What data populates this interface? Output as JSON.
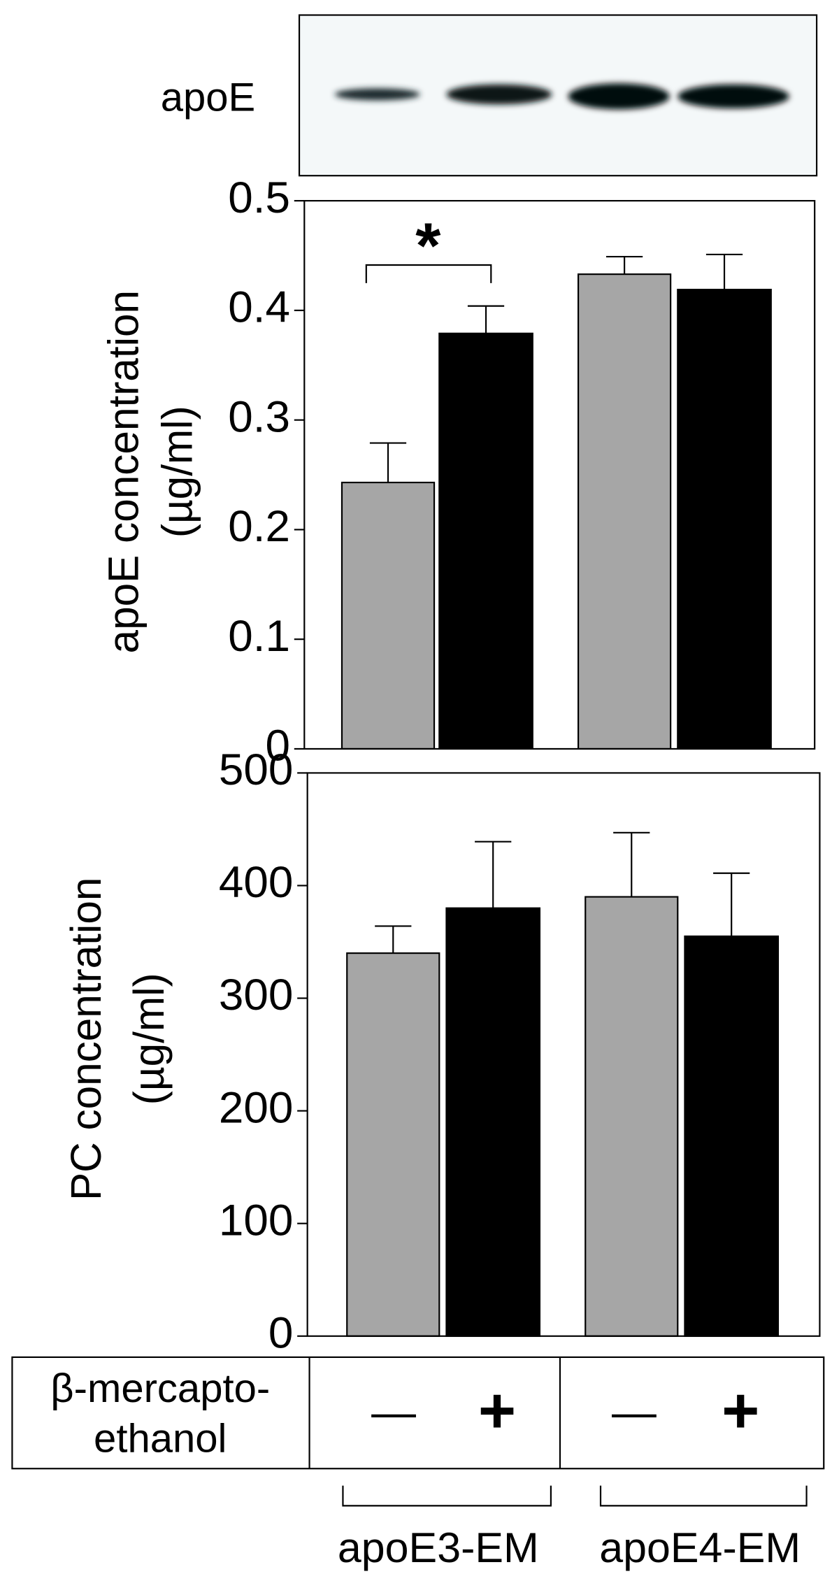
{
  "blot": {
    "label": "apoE"
  },
  "chart_data": [
    {
      "type": "bar",
      "ylabel": [
        "apoE concentration",
        "(µg/ml)"
      ],
      "ylim": [
        0,
        0.5
      ],
      "yticks": [
        0,
        0.1,
        0.2,
        0.3,
        0.4,
        0.5
      ],
      "annotation": "*",
      "series": [
        {
          "color": "#a6a6a6",
          "values": [
            0.243,
            0.433
          ],
          "error": [
            0.036,
            0.016
          ]
        },
        {
          "color": "#000000",
          "values": [
            0.379,
            0.419
          ],
          "error": [
            0.025,
            0.032
          ]
        }
      ]
    },
    {
      "type": "bar",
      "ylabel": [
        "PC concentration",
        "(µg/ml)"
      ],
      "ylim": [
        0,
        500
      ],
      "yticks": [
        0,
        100,
        200,
        300,
        400,
        500
      ],
      "categories": [
        "apoE3-EM",
        "apoE4-EM"
      ],
      "series": [
        {
          "color": "#a6a6a6",
          "values": [
            340,
            390
          ],
          "error": [
            24,
            57
          ]
        },
        {
          "color": "#000000",
          "values": [
            380,
            355
          ],
          "error": [
            59,
            56
          ]
        }
      ]
    }
  ],
  "treatment_table": {
    "label": [
      "β-mercapto-",
      "ethanol"
    ],
    "signs": [
      "—",
      "+",
      "—",
      "+"
    ]
  }
}
